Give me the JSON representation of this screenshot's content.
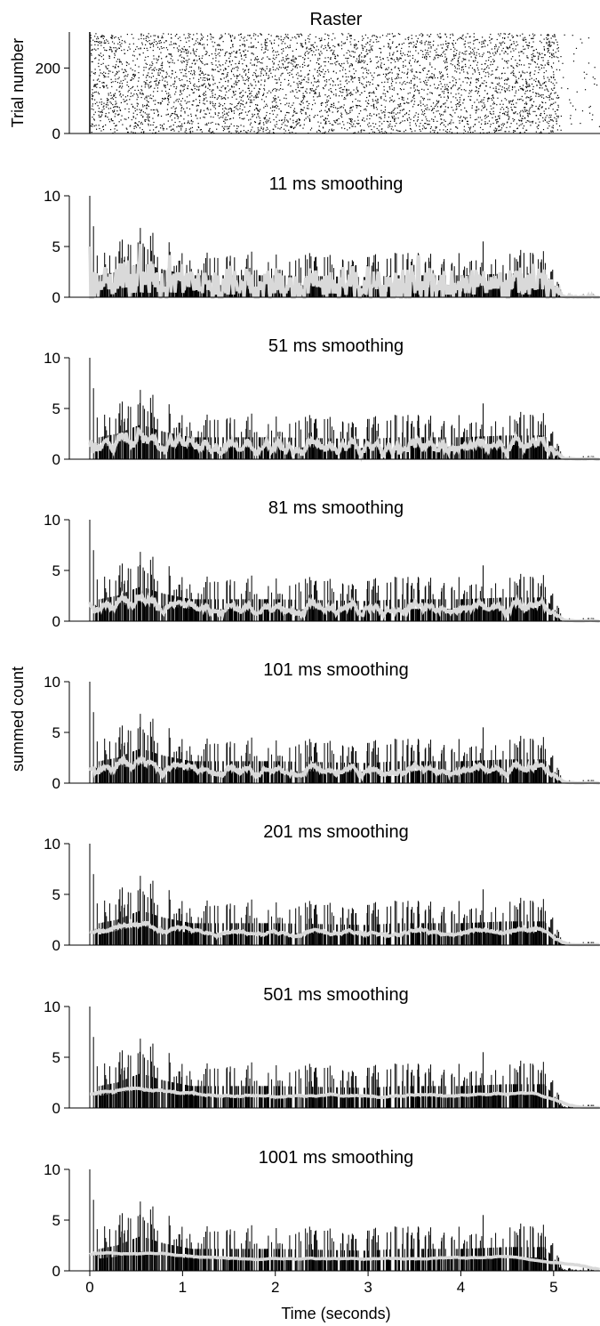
{
  "chart_data": {
    "type": "multi-panel",
    "xlabel": "Time (seconds)",
    "ylabel": "summed count",
    "xlim": [
      -0.2,
      5.5
    ],
    "x_ticks": [
      0,
      1,
      2,
      3,
      4,
      5
    ],
    "raster": {
      "type": "scatter",
      "title": "Raster",
      "ylabel": "Trial number",
      "ylim": [
        0,
        310
      ],
      "y_ticks": [
        0,
        200
      ],
      "n_trials": 305,
      "event_time": 0,
      "spike_window": [
        0,
        5.05
      ],
      "baseline_rate_hz": 3,
      "late_rate_hz": 0.15,
      "marker_color": "#000000"
    },
    "psth": {
      "type": "bar",
      "ylim": [
        0,
        10
      ],
      "y_ticks": [
        0,
        5,
        10
      ],
      "bin_width_s": 0.005,
      "bar_color": "#000000",
      "smooth_color": "#d9d9d9",
      "mean_count": 1.2,
      "peaks": [
        {
          "x": 0.0,
          "y": 10
        },
        {
          "x": 0.04,
          "y": 7
        },
        {
          "x": 0.52,
          "y": 5.4
        },
        {
          "x": 4.24,
          "y": 5.5
        },
        {
          "x": 4.78,
          "y": 4.2
        }
      ],
      "smoothed_profile": {
        "x": [
          0,
          0.02,
          0.1,
          0.3,
          0.55,
          0.8,
          1.1,
          2.0,
          3.0,
          3.3,
          4.0,
          4.5,
          4.9,
          5.0,
          5.1,
          5.5
        ],
        "y": [
          3.0,
          2.0,
          1.2,
          1.4,
          1.9,
          1.5,
          1.2,
          1.2,
          1.1,
          1.2,
          1.2,
          1.3,
          1.3,
          0.7,
          0.1,
          0.0
        ]
      }
    },
    "panels": [
      {
        "title": "11 ms smoothing",
        "window_ms": 11
      },
      {
        "title": "51 ms smoothing",
        "window_ms": 51
      },
      {
        "title": "81 ms smoothing",
        "window_ms": 81
      },
      {
        "title": "101 ms smoothing",
        "window_ms": 101
      },
      {
        "title": "201 ms smoothing",
        "window_ms": 201
      },
      {
        "title": "501 ms smoothing",
        "window_ms": 501
      },
      {
        "title": "1001 ms smoothing",
        "window_ms": 1001
      }
    ]
  }
}
